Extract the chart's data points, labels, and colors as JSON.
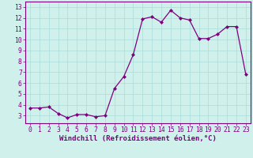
{
  "x": [
    0,
    1,
    2,
    3,
    4,
    5,
    6,
    7,
    8,
    9,
    10,
    11,
    12,
    13,
    14,
    15,
    16,
    17,
    18,
    19,
    20,
    21,
    22,
    23
  ],
  "y": [
    3.7,
    3.7,
    3.8,
    3.2,
    2.8,
    3.1,
    3.1,
    2.9,
    3.0,
    5.5,
    6.6,
    8.6,
    11.9,
    12.1,
    11.6,
    12.7,
    12.0,
    11.8,
    10.1,
    10.1,
    10.5,
    11.2,
    11.2,
    6.8
  ],
  "line_color": "#800080",
  "marker": "D",
  "marker_size": 2.0,
  "bg_color": "#cff0eb",
  "grid_color": "#aaddda",
  "xlabel": "Windchill (Refroidissement éolien,°C)",
  "xlim": [
    -0.5,
    23.5
  ],
  "ylim": [
    2.3,
    13.5
  ],
  "yticks": [
    3,
    4,
    5,
    6,
    7,
    8,
    9,
    10,
    11,
    12,
    13
  ],
  "xticks": [
    0,
    1,
    2,
    3,
    4,
    5,
    6,
    7,
    8,
    9,
    10,
    11,
    12,
    13,
    14,
    15,
    16,
    17,
    18,
    19,
    20,
    21,
    22,
    23
  ],
  "xlabel_fontsize": 6.5,
  "tick_fontsize": 5.8,
  "axis_label_color": "#800080",
  "spine_color": "#800080",
  "line_width": 0.9
}
